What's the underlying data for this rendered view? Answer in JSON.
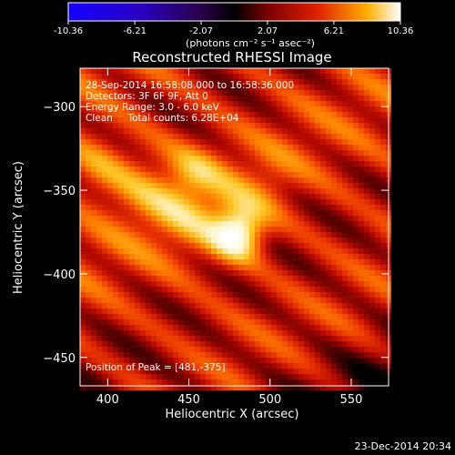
{
  "chart_data": {
    "type": "heatmap",
    "title": "Reconstructed RHESSI Image",
    "xlabel": "Heliocentric X (arcsec)",
    "ylabel": "Heliocentric Y (arcsec)",
    "xlim": [
      383,
      573
    ],
    "ylim": [
      -467,
      -277
    ],
    "x_ticks": [
      400,
      450,
      500,
      550
    ],
    "y_ticks": [
      -300,
      -350,
      -400,
      -450
    ],
    "colorbar": {
      "ticks": [
        "-10.36",
        "-6.21",
        "-2.07",
        "2.07",
        "6.21",
        "10.36"
      ],
      "range": [
        -10.36,
        10.36
      ],
      "units_label": "(photons cm⁻² s⁻¹ asec⁻²)"
    },
    "annotations": [
      "28-Sep-2014 16:58:08.000 to 16:58:36.000",
      "Detectors: 3F 6F 9F, Att 0",
      "Energy Range: 3.0 - 6.0 keV",
      "Clean     Total counts: 6.28E+04"
    ],
    "peak_label": "Position of Peak = [481,-375]",
    "peak": [
      481,
      -375
    ],
    "timestamp": "23-Dec-2014 20:34"
  }
}
